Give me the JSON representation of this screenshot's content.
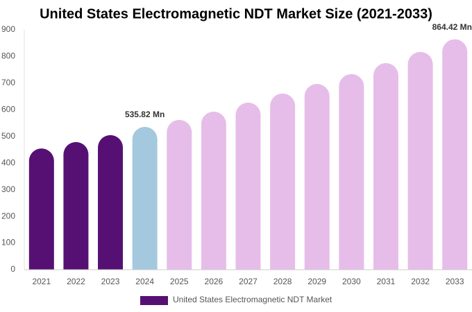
{
  "chart_data": {
    "type": "bar",
    "title": "United States Electromagnetic NDT Market Size (2021-2033)",
    "categories": [
      "2021",
      "2022",
      "2023",
      "2024",
      "2025",
      "2026",
      "2027",
      "2028",
      "2029",
      "2030",
      "2031",
      "2032",
      "2033"
    ],
    "series": [
      {
        "name": "United States Electromagnetic NDT Market",
        "color": "#561073",
        "values": [
          455,
          479,
          505,
          535.82,
          562,
          593,
          627,
          661,
          697,
          734,
          775,
          817,
          864.42
        ],
        "value_labels": [
          null,
          null,
          null,
          "535.82 Mn",
          null,
          null,
          null,
          null,
          null,
          null,
          null,
          null,
          "864.42 Mn"
        ],
        "colors": [
          "#561073",
          "#561073",
          "#561073",
          "#a4c9de",
          "#e6bde9",
          "#e6bde9",
          "#e6bde9",
          "#e6bde9",
          "#e6bde9",
          "#e6bde9",
          "#e6bde9",
          "#e6bde9",
          "#e6bde9"
        ]
      }
    ],
    "ylim": [
      0,
      900
    ],
    "yticks": [
      0,
      100,
      200,
      300,
      400,
      500,
      600,
      700,
      800,
      900
    ],
    "grid": false,
    "legend": "bottom"
  }
}
